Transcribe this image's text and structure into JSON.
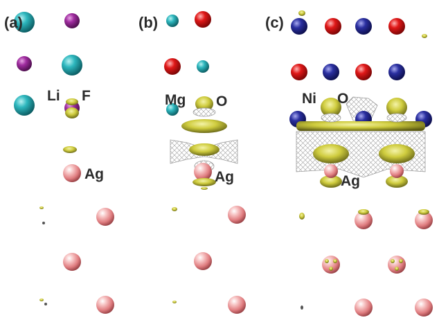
{
  "panels": [
    {
      "label": "(a)",
      "species": [
        "Li",
        "F",
        "Ag"
      ]
    },
    {
      "label": "(b)",
      "species": [
        "Mg",
        "O",
        "Ag"
      ]
    },
    {
      "label": "(c)",
      "species": [
        "Ni",
        "O",
        "Ag"
      ]
    }
  ],
  "atom_colors": {
    "Li": "#1aa6ad",
    "F": "#9a2a98",
    "Mg": "#1aa6ad",
    "O": "#e01818",
    "Ni": "#2a2fa0",
    "Ag": "#e58c8c"
  },
  "isosurface_colors": {
    "charge_accumulation": "#d9d64a",
    "charge_depletion": "#a8a8a8"
  }
}
